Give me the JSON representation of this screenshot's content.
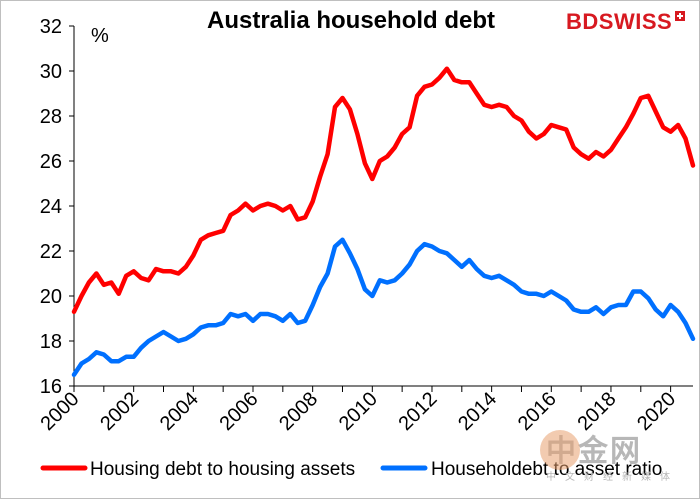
{
  "chart_data": {
    "type": "line",
    "title": "Australia  household debt",
    "ylabel": "%",
    "ylim": [
      16,
      32
    ],
    "yticks": [
      16,
      18,
      20,
      22,
      24,
      26,
      28,
      30,
      32
    ],
    "xlim": [
      2000,
      2020.75
    ],
    "xticks": [
      "2000",
      "2002",
      "2004",
      "2006",
      "2008",
      "2010",
      "2012",
      "2014",
      "2016",
      "2018",
      "2020"
    ],
    "grid": false,
    "legend": "bottom",
    "series": [
      {
        "name": "Housing debt to housing assets",
        "color": "#ff0000",
        "x": [
          2000.0,
          2000.25,
          2000.5,
          2000.75,
          2001.0,
          2001.25,
          2001.5,
          2001.75,
          2002.0,
          2002.25,
          2002.5,
          2002.75,
          2003.0,
          2003.25,
          2003.5,
          2003.75,
          2004.0,
          2004.25,
          2004.5,
          2004.75,
          2005.0,
          2005.25,
          2005.5,
          2005.75,
          2006.0,
          2006.25,
          2006.5,
          2006.75,
          2007.0,
          2007.25,
          2007.5,
          2007.75,
          2008.0,
          2008.25,
          2008.5,
          2008.75,
          2009.0,
          2009.25,
          2009.5,
          2009.75,
          2010.0,
          2010.25,
          2010.5,
          2010.75,
          2011.0,
          2011.25,
          2011.5,
          2011.75,
          2012.0,
          2012.25,
          2012.5,
          2012.75,
          2013.0,
          2013.25,
          2013.5,
          2013.75,
          2014.0,
          2014.25,
          2014.5,
          2014.75,
          2015.0,
          2015.25,
          2015.5,
          2015.75,
          2016.0,
          2016.25,
          2016.5,
          2016.75,
          2017.0,
          2017.25,
          2017.5,
          2017.75,
          2018.0,
          2018.25,
          2018.5,
          2018.75,
          2019.0,
          2019.25,
          2019.5,
          2019.75,
          2020.0,
          2020.25,
          2020.5,
          2020.75
        ],
        "values": [
          19.3,
          20.0,
          20.6,
          21.0,
          20.5,
          20.6,
          20.1,
          20.9,
          21.1,
          20.8,
          20.7,
          21.2,
          21.1,
          21.1,
          21.0,
          21.3,
          21.8,
          22.5,
          22.7,
          22.8,
          22.9,
          23.6,
          23.8,
          24.1,
          23.8,
          24.0,
          24.1,
          24.0,
          23.8,
          24.0,
          23.4,
          23.5,
          24.2,
          25.3,
          26.3,
          28.4,
          28.8,
          28.3,
          27.2,
          25.9,
          25.2,
          26.0,
          26.2,
          26.6,
          27.2,
          27.5,
          28.9,
          29.3,
          29.4,
          29.7,
          30.1,
          29.6,
          29.5,
          29.5,
          29.0,
          28.5,
          28.4,
          28.5,
          28.4,
          28.0,
          27.8,
          27.3,
          27.0,
          27.2,
          27.6,
          27.5,
          27.4,
          26.6,
          26.3,
          26.1,
          26.4,
          26.2,
          26.5,
          27.0,
          27.5,
          28.1,
          28.8,
          28.9,
          28.2,
          27.5,
          27.3,
          27.6,
          27.0,
          25.8
        ]
      },
      {
        "name": "Householdebt to asset ratio",
        "color": "#0070ff",
        "x": [
          2000.0,
          2000.25,
          2000.5,
          2000.75,
          2001.0,
          2001.25,
          2001.5,
          2001.75,
          2002.0,
          2002.25,
          2002.5,
          2002.75,
          2003.0,
          2003.25,
          2003.5,
          2003.75,
          2004.0,
          2004.25,
          2004.5,
          2004.75,
          2005.0,
          2005.25,
          2005.5,
          2005.75,
          2006.0,
          2006.25,
          2006.5,
          2006.75,
          2007.0,
          2007.25,
          2007.5,
          2007.75,
          2008.0,
          2008.25,
          2008.5,
          2008.75,
          2009.0,
          2009.25,
          2009.5,
          2009.75,
          2010.0,
          2010.25,
          2010.5,
          2010.75,
          2011.0,
          2011.25,
          2011.5,
          2011.75,
          2012.0,
          2012.25,
          2012.5,
          2012.75,
          2013.0,
          2013.25,
          2013.5,
          2013.75,
          2014.0,
          2014.25,
          2014.5,
          2014.75,
          2015.0,
          2015.25,
          2015.5,
          2015.75,
          2016.0,
          2016.25,
          2016.5,
          2016.75,
          2017.0,
          2017.25,
          2017.5,
          2017.75,
          2018.0,
          2018.25,
          2018.5,
          2018.75,
          2019.0,
          2019.25,
          2019.5,
          2019.75,
          2020.0,
          2020.25,
          2020.5,
          2020.75
        ],
        "values": [
          16.5,
          17.0,
          17.2,
          17.5,
          17.4,
          17.1,
          17.1,
          17.3,
          17.3,
          17.7,
          18.0,
          18.2,
          18.4,
          18.2,
          18.0,
          18.1,
          18.3,
          18.6,
          18.7,
          18.7,
          18.8,
          19.2,
          19.1,
          19.2,
          18.9,
          19.2,
          19.2,
          19.1,
          18.9,
          19.2,
          18.8,
          18.9,
          19.6,
          20.4,
          21.0,
          22.2,
          22.5,
          21.9,
          21.2,
          20.3,
          20.0,
          20.7,
          20.6,
          20.7,
          21.0,
          21.4,
          22.0,
          22.3,
          22.2,
          22.0,
          21.9,
          21.6,
          21.3,
          21.6,
          21.2,
          20.9,
          20.8,
          20.9,
          20.7,
          20.5,
          20.2,
          20.1,
          20.1,
          20.0,
          20.2,
          20.0,
          19.8,
          19.4,
          19.3,
          19.3,
          19.5,
          19.2,
          19.5,
          19.6,
          19.6,
          20.2,
          20.2,
          19.9,
          19.4,
          19.1,
          19.6,
          19.3,
          18.8,
          18.1
        ]
      }
    ]
  },
  "brand": {
    "logo_text_a": "BD",
    "logo_text_b": "SWISS"
  },
  "watermark": {
    "big": "中金网",
    "small": "中文财经新媒体"
  }
}
